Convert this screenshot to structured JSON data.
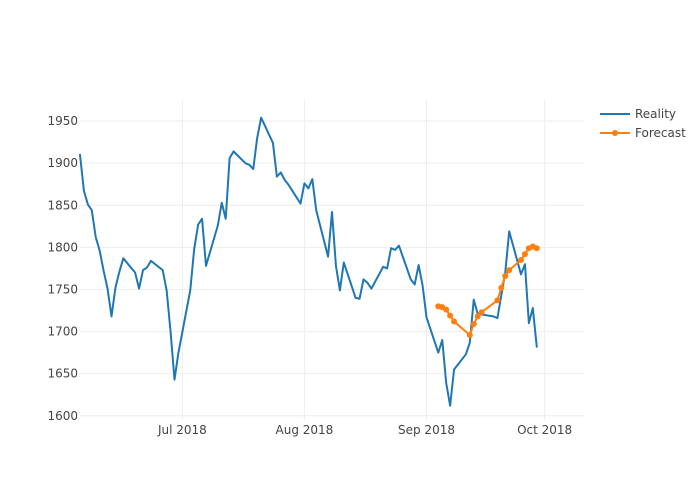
{
  "chart_data": {
    "type": "line",
    "title": "",
    "xlabel": "",
    "ylabel": "",
    "x_range": [
      "2018-06-05",
      "2018-10-11"
    ],
    "ylim": [
      1595,
      1975
    ],
    "grid": true,
    "legend_position": "top-right",
    "x_ticks": [
      {
        "date": "2018-07-01",
        "label": "Jul 2018"
      },
      {
        "date": "2018-08-01",
        "label": "Aug 2018"
      },
      {
        "date": "2018-09-01",
        "label": "Sep 2018"
      },
      {
        "date": "2018-10-01",
        "label": "Oct 2018"
      }
    ],
    "y_ticks": [
      1600,
      1650,
      1700,
      1750,
      1800,
      1850,
      1900,
      1950
    ],
    "series": [
      {
        "name": "Reality",
        "color": "#1f77b4",
        "markers": false,
        "points": [
          [
            "2018-06-05",
            1910
          ],
          [
            "2018-06-06",
            1867
          ],
          [
            "2018-06-07",
            1851
          ],
          [
            "2018-06-08",
            1844
          ],
          [
            "2018-06-09",
            1812
          ],
          [
            "2018-06-10",
            1796
          ],
          [
            "2018-06-11",
            1772
          ],
          [
            "2018-06-12",
            1751
          ],
          [
            "2018-06-13",
            1718
          ],
          [
            "2018-06-14",
            1752
          ],
          [
            "2018-06-15",
            1771
          ],
          [
            "2018-06-16",
            1787
          ],
          [
            "2018-06-19",
            1770
          ],
          [
            "2018-06-20",
            1751
          ],
          [
            "2018-06-21",
            1773
          ],
          [
            "2018-06-22",
            1776
          ],
          [
            "2018-06-23",
            1784
          ],
          [
            "2018-06-26",
            1773
          ],
          [
            "2018-06-27",
            1749
          ],
          [
            "2018-06-28",
            1700
          ],
          [
            "2018-06-29",
            1643
          ],
          [
            "2018-06-30",
            1675
          ],
          [
            "2018-07-03",
            1749
          ],
          [
            "2018-07-04",
            1798
          ],
          [
            "2018-07-05",
            1827
          ],
          [
            "2018-07-06",
            1834
          ],
          [
            "2018-07-07",
            1778
          ],
          [
            "2018-07-10",
            1826
          ],
          [
            "2018-07-11",
            1853
          ],
          [
            "2018-07-12",
            1834
          ],
          [
            "2018-07-13",
            1906
          ],
          [
            "2018-07-14",
            1914
          ],
          [
            "2018-07-17",
            1900
          ],
          [
            "2018-07-18",
            1898
          ],
          [
            "2018-07-19",
            1893
          ],
          [
            "2018-07-20",
            1930
          ],
          [
            "2018-07-21",
            1954
          ],
          [
            "2018-07-24",
            1924
          ],
          [
            "2018-07-25",
            1884
          ],
          [
            "2018-07-26",
            1889
          ],
          [
            "2018-07-27",
            1880
          ],
          [
            "2018-07-28",
            1874
          ],
          [
            "2018-07-31",
            1852
          ],
          [
            "2018-08-01",
            1876
          ],
          [
            "2018-08-02",
            1870
          ],
          [
            "2018-08-03",
            1881
          ],
          [
            "2018-08-04",
            1844
          ],
          [
            "2018-08-07",
            1789
          ],
          [
            "2018-08-08",
            1842
          ],
          [
            "2018-08-09",
            1778
          ],
          [
            "2018-08-10",
            1749
          ],
          [
            "2018-08-11",
            1782
          ],
          [
            "2018-08-14",
            1740
          ],
          [
            "2018-08-15",
            1739
          ],
          [
            "2018-08-16",
            1762
          ],
          [
            "2018-08-17",
            1758
          ],
          [
            "2018-08-18",
            1751
          ],
          [
            "2018-08-21",
            1777
          ],
          [
            "2018-08-22",
            1775
          ],
          [
            "2018-08-23",
            1799
          ],
          [
            "2018-08-24",
            1797
          ],
          [
            "2018-08-25",
            1802
          ],
          [
            "2018-08-28",
            1762
          ],
          [
            "2018-08-29",
            1756
          ],
          [
            "2018-08-30",
            1779
          ],
          [
            "2018-08-31",
            1755
          ],
          [
            "2018-09-01",
            1717
          ],
          [
            "2018-09-04",
            1675
          ],
          [
            "2018-09-05",
            1690
          ],
          [
            "2018-09-06",
            1639
          ],
          [
            "2018-09-07",
            1612
          ],
          [
            "2018-09-08",
            1655
          ],
          [
            "2018-09-11",
            1673
          ],
          [
            "2018-09-12",
            1687
          ],
          [
            "2018-09-13",
            1738
          ],
          [
            "2018-09-14",
            1721
          ],
          [
            "2018-09-18",
            1718
          ],
          [
            "2018-09-19",
            1716
          ],
          [
            "2018-09-20",
            1743
          ],
          [
            "2018-09-21",
            1770
          ],
          [
            "2018-09-22",
            1819
          ],
          [
            "2018-09-25",
            1768
          ],
          [
            "2018-09-26",
            1780
          ],
          [
            "2018-09-27",
            1710
          ],
          [
            "2018-09-28",
            1728
          ],
          [
            "2018-09-29",
            1682
          ]
        ]
      },
      {
        "name": "Forecast",
        "color": "#ff7f0e",
        "markers": true,
        "points": [
          [
            "2018-09-04",
            1730
          ],
          [
            "2018-09-04",
            1730
          ],
          [
            "2018-09-05",
            1729
          ],
          [
            "2018-09-06",
            1726
          ],
          [
            "2018-09-07",
            1719
          ],
          [
            "2018-09-08",
            1712
          ],
          [
            "2018-09-12",
            1696
          ],
          [
            "2018-09-13",
            1709
          ],
          [
            "2018-09-14",
            1718
          ],
          [
            "2018-09-15",
            1723
          ],
          [
            "2018-09-19",
            1737
          ],
          [
            "2018-09-20",
            1752
          ],
          [
            "2018-09-21",
            1766
          ],
          [
            "2018-09-22",
            1773
          ],
          [
            "2018-09-25",
            1785
          ],
          [
            "2018-09-26",
            1792
          ],
          [
            "2018-09-27",
            1799
          ],
          [
            "2018-09-28",
            1801
          ],
          [
            "2018-09-29",
            1799
          ]
        ]
      }
    ]
  }
}
